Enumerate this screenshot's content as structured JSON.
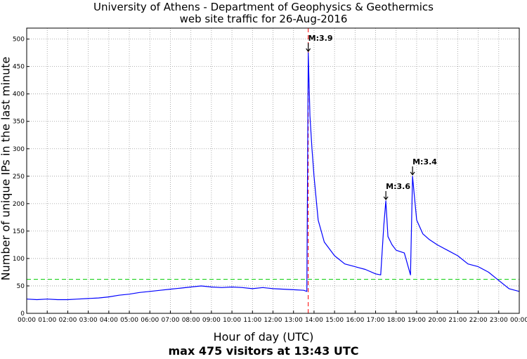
{
  "header": {
    "title_line1": "University of Athens - Department of Geophysics & Geothermics",
    "title_line2": "web site traffic for 26-Aug-2016"
  },
  "footer": {
    "xlabel": "Hour of day (UTC)",
    "summary": "max 475 visitors at 13:43 UTC"
  },
  "colors": {
    "series": "#0000ff",
    "reference_line": "#00cc00",
    "event_line": "#ff0000",
    "grid": "#999999"
  },
  "chart_data": {
    "type": "line",
    "title": "University of Athens - Department of Geophysics & Geothermics",
    "subtitle": "web site traffic for 26-Aug-2016",
    "xlabel": "Hour of day (UTC)",
    "ylabel": "Number of unique IPs in the last minute",
    "xlim": [
      0,
      24
    ],
    "ylim": [
      0,
      520
    ],
    "grid": true,
    "x_ticks": [
      "00:00",
      "01:00",
      "02:00",
      "03:00",
      "04:00",
      "05:00",
      "06:00",
      "07:00",
      "08:00",
      "09:00",
      "10:00",
      "11:00",
      "12:00",
      "13:00",
      "14:00",
      "15:00",
      "16:00",
      "17:00",
      "18:00",
      "19:00",
      "20:00",
      "21:00",
      "22:00",
      "23:00",
      "00:00"
    ],
    "y_ticks": [
      0,
      50,
      100,
      150,
      200,
      250,
      300,
      350,
      400,
      450,
      500
    ],
    "series": [
      {
        "x": [
          0,
          0.5,
          1,
          1.5,
          2,
          2.5,
          3,
          3.5,
          4,
          4.5,
          5,
          5.5,
          6,
          6.5,
          7,
          7.5,
          8,
          8.5,
          9,
          9.5,
          10,
          10.5,
          11,
          11.5,
          12,
          12.5,
          13,
          13.5,
          13.65,
          13.717,
          13.8,
          13.9,
          14,
          14.2,
          14.5,
          15,
          15.5,
          16,
          16.5,
          17,
          17.25,
          17.4,
          17.5,
          17.6,
          17.8,
          18,
          18.4,
          18.7,
          18.8,
          18.9,
          19,
          19.3,
          19.6,
          20,
          20.5,
          21,
          21.5,
          22,
          22.5,
          23,
          23.5,
          24
        ],
        "y": [
          26,
          25,
          26,
          25,
          25,
          26,
          27,
          28,
          30,
          33,
          35,
          38,
          40,
          42,
          44,
          46,
          48,
          50,
          48,
          47,
          48,
          47,
          45,
          47,
          45,
          44,
          43,
          42,
          40,
          475,
          360,
          300,
          250,
          170,
          130,
          105,
          90,
          85,
          80,
          72,
          70,
          160,
          205,
          140,
          125,
          115,
          110,
          70,
          250,
          210,
          170,
          145,
          135,
          125,
          115,
          105,
          90,
          85,
          75,
          60,
          45,
          40
        ]
      }
    ],
    "reference_line_y": 62,
    "event_line_x": 13.717,
    "annotations": [
      {
        "label": "M:3.9",
        "x": 13.717,
        "y": 475
      },
      {
        "label": "M:3.6",
        "x": 17.5,
        "y": 205
      },
      {
        "label": "M:3.4",
        "x": 18.8,
        "y": 250
      }
    ],
    "max_visitors": 475,
    "max_time": "13:43"
  }
}
